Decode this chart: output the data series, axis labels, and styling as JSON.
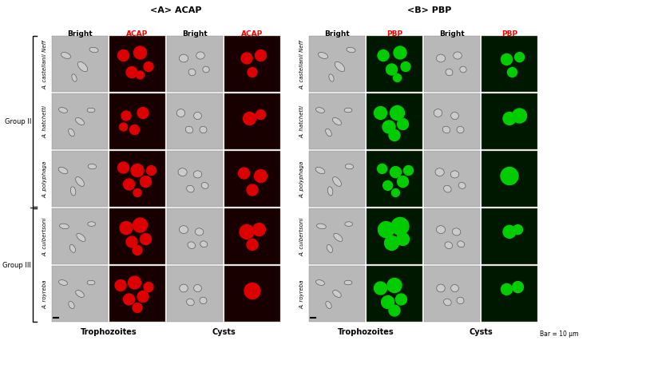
{
  "fig_width": 8.09,
  "fig_height": 4.77,
  "bg_color": "#ffffff",
  "title_A": "<A> ACAP",
  "title_B": "<B> PBP",
  "title_fontsize": 8,
  "panel_header_fontsize": 6.5,
  "species_fontsize": 5,
  "group_label_fontsize": 6,
  "axis_label_fontsize": 7,
  "bar_note_fontsize": 5.5,
  "species": [
    "A. castellanii Neff",
    "A. hatchetti",
    "A. polyphaga",
    "A. culbertsoni",
    "A. royreba"
  ],
  "section_A_col_headers": [
    "Bright",
    "ACAP",
    "Bright",
    "ACAP"
  ],
  "section_B_col_headers": [
    "Bright",
    "PBP",
    "Bright",
    "PBP"
  ],
  "acap_header_color": "#ff0000",
  "pbp_header_color": "#ff0000",
  "bright_header_color": "#000000",
  "bracket_color": "#000000",
  "bar_note": "Bar = 10 μm",
  "bright_bg": "#b8b8b8",
  "acap_bg": "#180000",
  "pbp_bg": "#001800",
  "red_blob": "#dd0000",
  "green_blob": "#00cc00"
}
